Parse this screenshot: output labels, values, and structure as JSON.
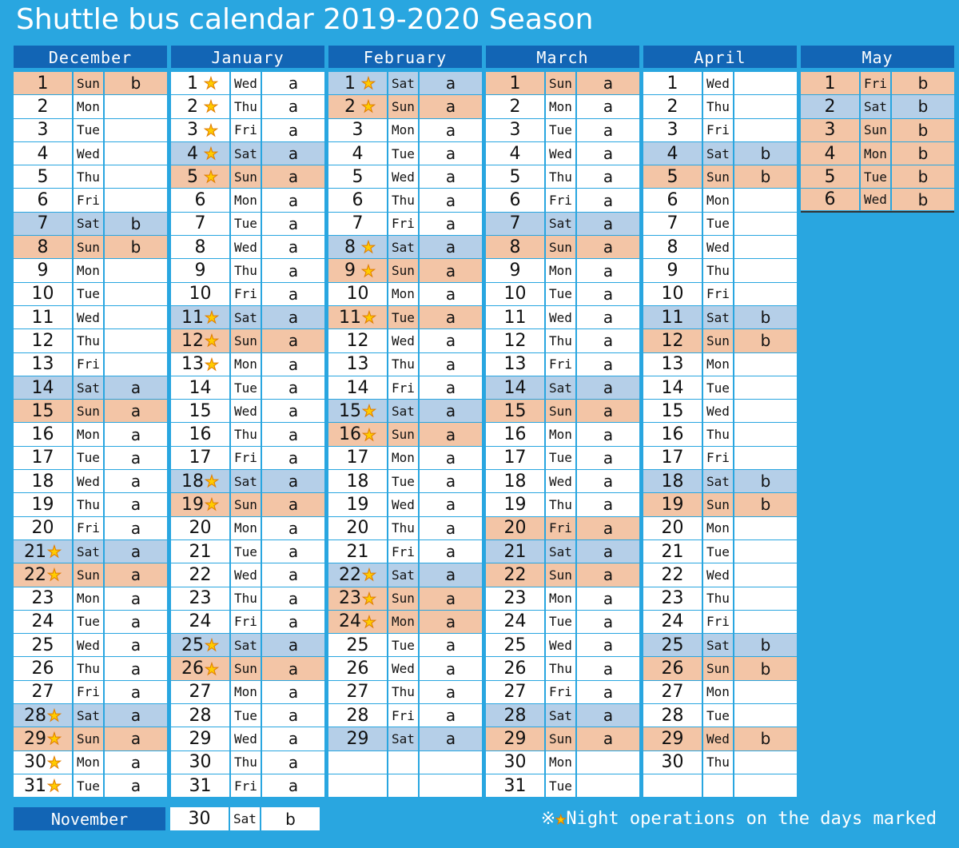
{
  "title": "Shuttle bus calendar 2019-2020 Season",
  "months": [
    {
      "name": "December",
      "days": [
        {
          "d": "1",
          "w": "Sun",
          "c": "b"
        },
        {
          "d": "2",
          "w": "Mon",
          "c": ""
        },
        {
          "d": "3",
          "w": "Tue",
          "c": ""
        },
        {
          "d": "4",
          "w": "Wed",
          "c": ""
        },
        {
          "d": "5",
          "w": "Thu",
          "c": ""
        },
        {
          "d": "6",
          "w": "Fri",
          "c": ""
        },
        {
          "d": "7",
          "w": "Sat",
          "c": "b"
        },
        {
          "d": "8",
          "w": "Sun",
          "c": "b"
        },
        {
          "d": "9",
          "w": "Mon",
          "c": ""
        },
        {
          "d": "10",
          "w": "Tue",
          "c": ""
        },
        {
          "d": "11",
          "w": "Wed",
          "c": ""
        },
        {
          "d": "12",
          "w": "Thu",
          "c": ""
        },
        {
          "d": "13",
          "w": "Fri",
          "c": ""
        },
        {
          "d": "14",
          "w": "Sat",
          "c": "a"
        },
        {
          "d": "15",
          "w": "Sun",
          "c": "a"
        },
        {
          "d": "16",
          "w": "Mon",
          "c": "a"
        },
        {
          "d": "17",
          "w": "Tue",
          "c": "a"
        },
        {
          "d": "18",
          "w": "Wed",
          "c": "a"
        },
        {
          "d": "19",
          "w": "Thu",
          "c": "a"
        },
        {
          "d": "20",
          "w": "Fri",
          "c": "a"
        },
        {
          "d": "21",
          "w": "Sat",
          "c": "a",
          "s": 1
        },
        {
          "d": "22",
          "w": "Sun",
          "c": "a",
          "s": 1
        },
        {
          "d": "23",
          "w": "Mon",
          "c": "a"
        },
        {
          "d": "24",
          "w": "Tue",
          "c": "a"
        },
        {
          "d": "25",
          "w": "Wed",
          "c": "a"
        },
        {
          "d": "26",
          "w": "Thu",
          "c": "a"
        },
        {
          "d": "27",
          "w": "Fri",
          "c": "a"
        },
        {
          "d": "28",
          "w": "Sat",
          "c": "a",
          "s": 1
        },
        {
          "d": "29",
          "w": "Sun",
          "c": "a",
          "s": 1
        },
        {
          "d": "30",
          "w": "Mon",
          "c": "a",
          "s": 1
        },
        {
          "d": "31",
          "w": "Tue",
          "c": "a",
          "s": 1
        }
      ]
    },
    {
      "name": "January",
      "days": [
        {
          "d": "1",
          "w": "Wed",
          "c": "a",
          "s": 1
        },
        {
          "d": "2",
          "w": "Thu",
          "c": "a",
          "s": 1
        },
        {
          "d": "3",
          "w": "Fri",
          "c": "a",
          "s": 1
        },
        {
          "d": "4",
          "w": "Sat",
          "c": "a",
          "s": 1
        },
        {
          "d": "5",
          "w": "Sun",
          "c": "a",
          "s": 1
        },
        {
          "d": "6",
          "w": "Mon",
          "c": "a"
        },
        {
          "d": "7",
          "w": "Tue",
          "c": "a"
        },
        {
          "d": "8",
          "w": "Wed",
          "c": "a"
        },
        {
          "d": "9",
          "w": "Thu",
          "c": "a"
        },
        {
          "d": "10",
          "w": "Fri",
          "c": "a"
        },
        {
          "d": "11",
          "w": "Sat",
          "c": "a",
          "s": 1
        },
        {
          "d": "12",
          "w": "Sun",
          "c": "a",
          "s": 1
        },
        {
          "d": "13",
          "w": "Mon",
          "c": "a",
          "s": 1
        },
        {
          "d": "14",
          "w": "Tue",
          "c": "a"
        },
        {
          "d": "15",
          "w": "Wed",
          "c": "a"
        },
        {
          "d": "16",
          "w": "Thu",
          "c": "a"
        },
        {
          "d": "17",
          "w": "Fri",
          "c": "a"
        },
        {
          "d": "18",
          "w": "Sat",
          "c": "a",
          "s": 1
        },
        {
          "d": "19",
          "w": "Sun",
          "c": "a",
          "s": 1
        },
        {
          "d": "20",
          "w": "Mon",
          "c": "a"
        },
        {
          "d": "21",
          "w": "Tue",
          "c": "a"
        },
        {
          "d": "22",
          "w": "Wed",
          "c": "a"
        },
        {
          "d": "23",
          "w": "Thu",
          "c": "a"
        },
        {
          "d": "24",
          "w": "Fri",
          "c": "a"
        },
        {
          "d": "25",
          "w": "Sat",
          "c": "a",
          "s": 1
        },
        {
          "d": "26",
          "w": "Sun",
          "c": "a",
          "s": 1
        },
        {
          "d": "27",
          "w": "Mon",
          "c": "a"
        },
        {
          "d": "28",
          "w": "Tue",
          "c": "a"
        },
        {
          "d": "29",
          "w": "Wed",
          "c": "a"
        },
        {
          "d": "30",
          "w": "Thu",
          "c": "a"
        },
        {
          "d": "31",
          "w": "Fri",
          "c": "a"
        }
      ]
    },
    {
      "name": "February",
      "days": [
        {
          "d": "1",
          "w": "Sat",
          "c": "a",
          "s": 1
        },
        {
          "d": "2",
          "w": "Sun",
          "c": "a",
          "s": 1
        },
        {
          "d": "3",
          "w": "Mon",
          "c": "a"
        },
        {
          "d": "4",
          "w": "Tue",
          "c": "a"
        },
        {
          "d": "5",
          "w": "Wed",
          "c": "a"
        },
        {
          "d": "6",
          "w": "Thu",
          "c": "a"
        },
        {
          "d": "7",
          "w": "Fri",
          "c": "a"
        },
        {
          "d": "8",
          "w": "Sat",
          "c": "a",
          "s": 1
        },
        {
          "d": "9",
          "w": "Sun",
          "c": "a",
          "s": 1
        },
        {
          "d": "10",
          "w": "Mon",
          "c": "a"
        },
        {
          "d": "11",
          "w": "Tue",
          "c": "a",
          "s": 1,
          "hol": 1
        },
        {
          "d": "12",
          "w": "Wed",
          "c": "a"
        },
        {
          "d": "13",
          "w": "Thu",
          "c": "a"
        },
        {
          "d": "14",
          "w": "Fri",
          "c": "a"
        },
        {
          "d": "15",
          "w": "Sat",
          "c": "a",
          "s": 1
        },
        {
          "d": "16",
          "w": "Sun",
          "c": "a",
          "s": 1
        },
        {
          "d": "17",
          "w": "Mon",
          "c": "a"
        },
        {
          "d": "18",
          "w": "Tue",
          "c": "a"
        },
        {
          "d": "19",
          "w": "Wed",
          "c": "a"
        },
        {
          "d": "20",
          "w": "Thu",
          "c": "a"
        },
        {
          "d": "21",
          "w": "Fri",
          "c": "a"
        },
        {
          "d": "22",
          "w": "Sat",
          "c": "a",
          "s": 1
        },
        {
          "d": "23",
          "w": "Sun",
          "c": "a",
          "s": 1
        },
        {
          "d": "24",
          "w": "Mon",
          "c": "a",
          "s": 1,
          "hol": 1
        },
        {
          "d": "25",
          "w": "Tue",
          "c": "a"
        },
        {
          "d": "26",
          "w": "Wed",
          "c": "a"
        },
        {
          "d": "27",
          "w": "Thu",
          "c": "a"
        },
        {
          "d": "28",
          "w": "Fri",
          "c": "a"
        },
        {
          "d": "29",
          "w": "Sat",
          "c": "a"
        }
      ]
    },
    {
      "name": "March",
      "days": [
        {
          "d": "1",
          "w": "Sun",
          "c": "a"
        },
        {
          "d": "2",
          "w": "Mon",
          "c": "a"
        },
        {
          "d": "3",
          "w": "Tue",
          "c": "a"
        },
        {
          "d": "4",
          "w": "Wed",
          "c": "a"
        },
        {
          "d": "5",
          "w": "Thu",
          "c": "a"
        },
        {
          "d": "6",
          "w": "Fri",
          "c": "a"
        },
        {
          "d": "7",
          "w": "Sat",
          "c": "a"
        },
        {
          "d": "8",
          "w": "Sun",
          "c": "a"
        },
        {
          "d": "9",
          "w": "Mon",
          "c": "a"
        },
        {
          "d": "10",
          "w": "Tue",
          "c": "a"
        },
        {
          "d": "11",
          "w": "Wed",
          "c": "a"
        },
        {
          "d": "12",
          "w": "Thu",
          "c": "a"
        },
        {
          "d": "13",
          "w": "Fri",
          "c": "a"
        },
        {
          "d": "14",
          "w": "Sat",
          "c": "a"
        },
        {
          "d": "15",
          "w": "Sun",
          "c": "a"
        },
        {
          "d": "16",
          "w": "Mon",
          "c": "a"
        },
        {
          "d": "17",
          "w": "Tue",
          "c": "a"
        },
        {
          "d": "18",
          "w": "Wed",
          "c": "a"
        },
        {
          "d": "19",
          "w": "Thu",
          "c": "a"
        },
        {
          "d": "20",
          "w": "Fri",
          "c": "a",
          "hol": 1
        },
        {
          "d": "21",
          "w": "Sat",
          "c": "a"
        },
        {
          "d": "22",
          "w": "Sun",
          "c": "a"
        },
        {
          "d": "23",
          "w": "Mon",
          "c": "a"
        },
        {
          "d": "24",
          "w": "Tue",
          "c": "a"
        },
        {
          "d": "25",
          "w": "Wed",
          "c": "a"
        },
        {
          "d": "26",
          "w": "Thu",
          "c": "a"
        },
        {
          "d": "27",
          "w": "Fri",
          "c": "a"
        },
        {
          "d": "28",
          "w": "Sat",
          "c": "a"
        },
        {
          "d": "29",
          "w": "Sun",
          "c": "a"
        },
        {
          "d": "30",
          "w": "Mon",
          "c": ""
        },
        {
          "d": "31",
          "w": "Tue",
          "c": ""
        }
      ]
    },
    {
      "name": "April",
      "days": [
        {
          "d": "1",
          "w": "Wed",
          "c": ""
        },
        {
          "d": "2",
          "w": "Thu",
          "c": ""
        },
        {
          "d": "3",
          "w": "Fri",
          "c": ""
        },
        {
          "d": "4",
          "w": "Sat",
          "c": "b"
        },
        {
          "d": "5",
          "w": "Sun",
          "c": "b"
        },
        {
          "d": "6",
          "w": "Mon",
          "c": ""
        },
        {
          "d": "7",
          "w": "Tue",
          "c": ""
        },
        {
          "d": "8",
          "w": "Wed",
          "c": ""
        },
        {
          "d": "9",
          "w": "Thu",
          "c": ""
        },
        {
          "d": "10",
          "w": "Fri",
          "c": ""
        },
        {
          "d": "11",
          "w": "Sat",
          "c": "b"
        },
        {
          "d": "12",
          "w": "Sun",
          "c": "b"
        },
        {
          "d": "13",
          "w": "Mon",
          "c": ""
        },
        {
          "d": "14",
          "w": "Tue",
          "c": ""
        },
        {
          "d": "15",
          "w": "Wed",
          "c": ""
        },
        {
          "d": "16",
          "w": "Thu",
          "c": ""
        },
        {
          "d": "17",
          "w": "Fri",
          "c": ""
        },
        {
          "d": "18",
          "w": "Sat",
          "c": "b"
        },
        {
          "d": "19",
          "w": "Sun",
          "c": "b"
        },
        {
          "d": "20",
          "w": "Mon",
          "c": ""
        },
        {
          "d": "21",
          "w": "Tue",
          "c": ""
        },
        {
          "d": "22",
          "w": "Wed",
          "c": ""
        },
        {
          "d": "23",
          "w": "Thu",
          "c": ""
        },
        {
          "d": "24",
          "w": "Fri",
          "c": ""
        },
        {
          "d": "25",
          "w": "Sat",
          "c": "b"
        },
        {
          "d": "26",
          "w": "Sun",
          "c": "b"
        },
        {
          "d": "27",
          "w": "Mon",
          "c": ""
        },
        {
          "d": "28",
          "w": "Tue",
          "c": ""
        },
        {
          "d": "29",
          "w": "Wed",
          "c": "b",
          "hol": 1
        },
        {
          "d": "30",
          "w": "Thu",
          "c": ""
        }
      ]
    },
    {
      "name": "May",
      "days": [
        {
          "d": "1",
          "w": "Fri",
          "c": "b",
          "hol": 1
        },
        {
          "d": "2",
          "w": "Sat",
          "c": "b"
        },
        {
          "d": "3",
          "w": "Sun",
          "c": "b"
        },
        {
          "d": "4",
          "w": "Mon",
          "c": "b",
          "hol": 1
        },
        {
          "d": "5",
          "w": "Tue",
          "c": "b",
          "hol": 1
        },
        {
          "d": "6",
          "w": "Wed",
          "c": "b",
          "hol": 1
        }
      ]
    }
  ],
  "november": {
    "label": "November",
    "day": "30",
    "dow": "Sat",
    "code": "b"
  },
  "note": "※★Night operations on the days marked",
  "colors": {
    "background": "#29a6e0",
    "header": "#1265b5",
    "saturday": "#b5cfe8",
    "holiday": "#f3c5a6",
    "star": "#ffcc00"
  }
}
